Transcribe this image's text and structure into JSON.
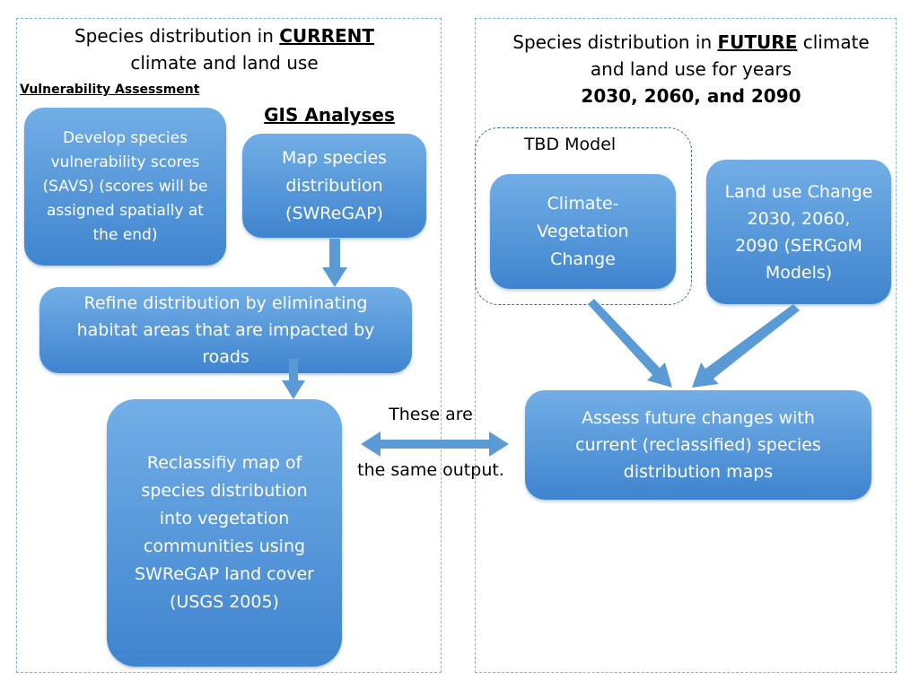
{
  "left_panel": {
    "title_prefix": "Species distribution in ",
    "title_keyword": "CURRENT",
    "title_suffix": "climate and land use",
    "vulnerability_heading": "Vulnerability Assessment",
    "gis_heading": "GIS Analyses",
    "vulnerability_box": "Develop species vulnerability scores (SAVS) (scores will be assigned spatially at the end)",
    "map_box": "Map species distribution (SWReGAP)",
    "refine_box": "Refine distribution by eliminating habitat areas that are impacted by roads",
    "reclassify_box": "Reclassifiy map of species distribution into vegetation communities using SWReGAP land cover (USGS 2005)"
  },
  "middle": {
    "line1": "These are",
    "line2": "the same output."
  },
  "right_panel": {
    "title_prefix": "Species distribution in ",
    "title_keyword": "FUTURE",
    "title_suffix": " climate",
    "title_line2": "and land use for years",
    "title_years": "2030, 2060, and 2090",
    "model_label": "TBD Model",
    "climate_box": "Climate-Vegetation Change",
    "landuse_box": "Land use Change 2030, 2060, 2090 (SERGoM Models)",
    "assess_box": "Assess future changes with current (reclassified) species distribution maps"
  },
  "colors": {
    "box_top": "#72aee6",
    "box_bottom": "#3f84cf",
    "arrow": "#5b9bd5",
    "panel_border": "#7fb2df"
  }
}
